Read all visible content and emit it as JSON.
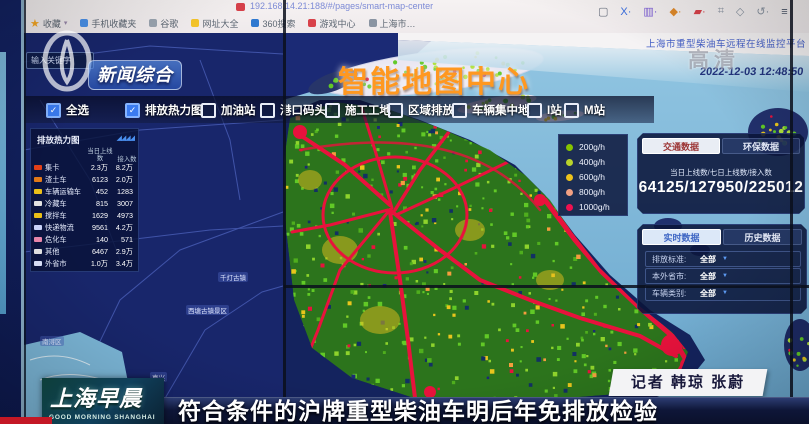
{
  "browser": {
    "url": "192.168.14.21:188/#/pages/smart-map-center",
    "bookmarks": [
      "收藏",
      "手机收藏夹",
      "谷歌",
      "网址大全",
      "360搜索",
      "游戏中心",
      "上海市…"
    ],
    "platform_title": "上海市重型柴油车远程在线监控平台",
    "datetime": "2022-12-03 12:48:50"
  },
  "map": {
    "center_title": "智能地图中心",
    "search_placeholder": "输入关键字",
    "labels": [
      "千灯古镇",
      "西塘古镇景区",
      "南浔区",
      "嘉兴"
    ]
  },
  "layer_toggles": [
    {
      "label": "全选",
      "checked": true
    },
    {
      "label": "排放热力图",
      "checked": true
    },
    {
      "label": "加油站",
      "checked": false
    },
    {
      "label": "港口码头",
      "checked": false
    },
    {
      "label": "施工工地",
      "checked": false
    },
    {
      "label": "区域排放",
      "checked": false
    },
    {
      "label": "车辆集中地",
      "checked": false
    },
    {
      "label": "I站",
      "checked": false
    },
    {
      "label": "M站",
      "checked": false
    }
  ],
  "heat_panel": {
    "title": "排放热力图",
    "columns": [
      "当日上线数",
      "接入数"
    ],
    "rows": [
      {
        "label": "集卡",
        "today": "2.3万",
        "connected": "8.2万",
        "icon_color": "#e84118"
      },
      {
        "label": "渣土车",
        "today": "6123",
        "connected": "2.0万",
        "icon_color": "#e87c18"
      },
      {
        "label": "车辆运输车",
        "today": "452",
        "connected": "1283",
        "icon_color": "#f0c419"
      },
      {
        "label": "冷藏车",
        "today": "815",
        "connected": "3007",
        "icon_color": "#e8e8e8"
      },
      {
        "label": "搅拌车",
        "today": "1629",
        "connected": "4973",
        "icon_color": "#f0c419"
      },
      {
        "label": "快递物流",
        "today": "9561",
        "connected": "4.2万",
        "icon_color": "#cfd8ff"
      },
      {
        "label": "危化车",
        "today": "140",
        "connected": "571",
        "icon_color": "#f08ab0"
      },
      {
        "label": "其他",
        "today": "6467",
        "connected": "2.9万",
        "icon_color": "#e8e8e8"
      },
      {
        "label": "外省市",
        "today": "1.0万",
        "connected": "3.4万",
        "icon_color": "#dfe6ff"
      }
    ]
  },
  "legend": {
    "items": [
      {
        "label": "200g/h",
        "color": "#86c400"
      },
      {
        "label": "400g/h",
        "color": "#b9d32b"
      },
      {
        "label": "600g/h",
        "color": "#edc21c"
      },
      {
        "label": "800g/h",
        "color": "#f2a083"
      },
      {
        "label": "1000g/h",
        "color": "#ef1050"
      }
    ]
  },
  "traffic_panel": {
    "tabs": [
      "交通数据",
      "环保数据"
    ],
    "active_tab": "交通数据",
    "metric_label": "当日上线数/七日上线数/接入数",
    "metric_value": "64125/127950/225012"
  },
  "data_panel": {
    "tabs": [
      "实时数据",
      "历史数据"
    ],
    "active_tab": "实时数据",
    "filters": [
      {
        "label": "排放标准:",
        "value": "全部"
      },
      {
        "label": "本外省市:",
        "value": "全部"
      },
      {
        "label": "车辆类别:",
        "value": "全部"
      }
    ]
  },
  "overlay": {
    "channel_name": "新闻综合",
    "hd_badge": "高清",
    "reporter": "记者 韩琼 张蔚"
  },
  "ticker": {
    "program": "上海早晨",
    "program_en": "GOOD MORNING SHANGHAI",
    "headline": "符合条件的沪牌重型柴油车明后年免排放检验"
  },
  "icons": {
    "check": "✓",
    "caret_down": "▼",
    "star": "★",
    "slashes": "◢◢◢◢"
  }
}
